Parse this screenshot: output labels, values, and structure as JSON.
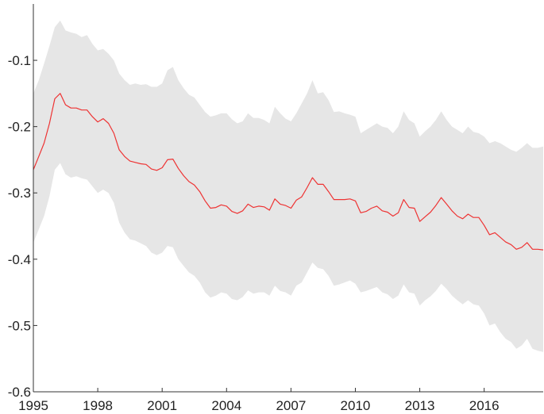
{
  "chart_data": {
    "type": "area",
    "title": "",
    "xlabel": "",
    "ylabel": "",
    "xlim": [
      1995,
      2018.75
    ],
    "ylim": [
      -0.6,
      0.0
    ],
    "grid": false,
    "legend": "none",
    "x_ticks": [
      1995,
      1998,
      2001,
      2004,
      2007,
      2010,
      2013,
      2016
    ],
    "x_tick_labels": [
      "1995",
      "1998",
      "2001",
      "2004",
      "2007",
      "2010",
      "2013",
      "2016"
    ],
    "y_ticks": [
      -0.1,
      -0.2,
      -0.3,
      -0.4,
      -0.5,
      -0.6
    ],
    "y_tick_labels": [
      "-0.1",
      "-0.2",
      "-0.3",
      "-0.4",
      "-0.5",
      "-0.6"
    ],
    "colors": {
      "line": "#ee3333",
      "band": "#e6e6e6",
      "axis": "#333333"
    },
    "series": [
      {
        "kind": "line",
        "x": [
          1995.0,
          1995.25,
          1995.5,
          1995.75,
          1996.0,
          1996.25,
          1996.5,
          1996.75,
          1997.0,
          1997.25,
          1997.5,
          1997.75,
          1998.0,
          1998.25,
          1998.5,
          1998.75,
          1999.0,
          1999.25,
          1999.5,
          1999.75,
          2000.0,
          2000.25,
          2000.5,
          2000.75,
          2001.0,
          2001.25,
          2001.5,
          2001.75,
          2002.0,
          2002.25,
          2002.5,
          2002.75,
          2003.0,
          2003.25,
          2003.5,
          2003.75,
          2004.0,
          2004.25,
          2004.5,
          2004.75,
          2005.0,
          2005.25,
          2005.5,
          2005.75,
          2006.0,
          2006.25,
          2006.5,
          2006.75,
          2007.0,
          2007.25,
          2007.5,
          2007.75,
          2008.0,
          2008.25,
          2008.5,
          2008.75,
          2009.0,
          2009.25,
          2009.5,
          2009.75,
          2010.0,
          2010.25,
          2010.5,
          2010.75,
          2011.0,
          2011.25,
          2011.5,
          2011.75,
          2012.0,
          2012.25,
          2012.5,
          2012.75,
          2013.0,
          2013.25,
          2013.5,
          2013.75,
          2014.0,
          2014.25,
          2014.5,
          2014.75,
          2015.0,
          2015.25,
          2015.5,
          2015.75,
          2016.0,
          2016.25,
          2016.5,
          2016.75,
          2017.0,
          2017.25,
          2017.5,
          2017.75,
          2018.0,
          2018.25,
          2018.5,
          2018.75
        ],
        "y": [
          -0.265,
          -0.245,
          -0.225,
          -0.195,
          -0.158,
          -0.15,
          -0.167,
          -0.172,
          -0.172,
          -0.175,
          -0.175,
          -0.185,
          -0.193,
          -0.188,
          -0.195,
          -0.21,
          -0.235,
          -0.245,
          -0.252,
          -0.254,
          -0.256,
          -0.257,
          -0.264,
          -0.266,
          -0.262,
          -0.25,
          -0.249,
          -0.263,
          -0.274,
          -0.283,
          -0.288,
          -0.298,
          -0.312,
          -0.323,
          -0.322,
          -0.318,
          -0.32,
          -0.328,
          -0.331,
          -0.327,
          -0.317,
          -0.322,
          -0.32,
          -0.321,
          -0.326,
          -0.309,
          -0.317,
          -0.319,
          -0.323,
          -0.311,
          -0.306,
          -0.292,
          -0.277,
          -0.287,
          -0.287,
          -0.298,
          -0.31,
          -0.31,
          -0.31,
          -0.309,
          -0.312,
          -0.33,
          -0.328,
          -0.323,
          -0.32,
          -0.327,
          -0.329,
          -0.335,
          -0.33,
          -0.31,
          -0.322,
          -0.323,
          -0.343,
          -0.336,
          -0.329,
          -0.319,
          -0.307,
          -0.317,
          -0.327,
          -0.335,
          -0.339,
          -0.332,
          -0.337,
          -0.337,
          -0.349,
          -0.363,
          -0.36,
          -0.367,
          -0.374,
          -0.378,
          -0.385,
          -0.382,
          -0.375,
          -0.385,
          -0.385,
          -0.386
        ]
      },
      {
        "kind": "band",
        "x": [
          1995.0,
          1995.25,
          1995.5,
          1995.75,
          1996.0,
          1996.25,
          1996.5,
          1996.75,
          1997.0,
          1997.25,
          1997.5,
          1997.75,
          1998.0,
          1998.25,
          1998.5,
          1998.75,
          1999.0,
          1999.25,
          1999.5,
          1999.75,
          2000.0,
          2000.25,
          2000.5,
          2000.75,
          2001.0,
          2001.25,
          2001.5,
          2001.75,
          2002.0,
          2002.25,
          2002.5,
          2002.75,
          2003.0,
          2003.25,
          2003.5,
          2003.75,
          2004.0,
          2004.25,
          2004.5,
          2004.75,
          2005.0,
          2005.25,
          2005.5,
          2005.75,
          2006.0,
          2006.25,
          2006.5,
          2006.75,
          2007.0,
          2007.25,
          2007.5,
          2007.75,
          2008.0,
          2008.25,
          2008.5,
          2008.75,
          2009.0,
          2009.25,
          2009.5,
          2009.75,
          2010.0,
          2010.25,
          2010.5,
          2010.75,
          2011.0,
          2011.25,
          2011.5,
          2011.75,
          2012.0,
          2012.25,
          2012.5,
          2012.75,
          2013.0,
          2013.25,
          2013.5,
          2013.75,
          2014.0,
          2014.25,
          2014.5,
          2014.75,
          2015.0,
          2015.25,
          2015.5,
          2015.75,
          2016.0,
          2016.25,
          2016.5,
          2016.75,
          2017.0,
          2017.25,
          2017.5,
          2017.75,
          2018.0,
          2018.25,
          2018.5,
          2018.75
        ],
        "upper": [
          -0.15,
          -0.13,
          -0.105,
          -0.078,
          -0.05,
          -0.04,
          -0.055,
          -0.058,
          -0.06,
          -0.065,
          -0.062,
          -0.075,
          -0.085,
          -0.083,
          -0.09,
          -0.1,
          -0.12,
          -0.13,
          -0.137,
          -0.135,
          -0.137,
          -0.136,
          -0.14,
          -0.14,
          -0.135,
          -0.115,
          -0.11,
          -0.13,
          -0.142,
          -0.152,
          -0.156,
          -0.167,
          -0.178,
          -0.185,
          -0.183,
          -0.18,
          -0.18,
          -0.189,
          -0.195,
          -0.192,
          -0.18,
          -0.187,
          -0.187,
          -0.19,
          -0.195,
          -0.17,
          -0.18,
          -0.188,
          -0.192,
          -0.18,
          -0.165,
          -0.15,
          -0.13,
          -0.15,
          -0.148,
          -0.16,
          -0.178,
          -0.177,
          -0.18,
          -0.182,
          -0.185,
          -0.21,
          -0.205,
          -0.2,
          -0.195,
          -0.2,
          -0.202,
          -0.21,
          -0.2,
          -0.177,
          -0.19,
          -0.195,
          -0.215,
          -0.207,
          -0.2,
          -0.19,
          -0.177,
          -0.19,
          -0.2,
          -0.205,
          -0.21,
          -0.2,
          -0.208,
          -0.21,
          -0.215,
          -0.225,
          -0.222,
          -0.225,
          -0.23,
          -0.235,
          -0.238,
          -0.232,
          -0.225,
          -0.232,
          -0.232,
          -0.23
        ],
        "lower": [
          -0.375,
          -0.355,
          -0.335,
          -0.305,
          -0.265,
          -0.255,
          -0.272,
          -0.277,
          -0.275,
          -0.278,
          -0.28,
          -0.29,
          -0.3,
          -0.295,
          -0.3,
          -0.315,
          -0.345,
          -0.36,
          -0.37,
          -0.372,
          -0.376,
          -0.38,
          -0.39,
          -0.394,
          -0.39,
          -0.38,
          -0.382,
          -0.4,
          -0.41,
          -0.42,
          -0.425,
          -0.435,
          -0.45,
          -0.458,
          -0.455,
          -0.45,
          -0.452,
          -0.46,
          -0.462,
          -0.457,
          -0.447,
          -0.452,
          -0.45,
          -0.45,
          -0.455,
          -0.44,
          -0.448,
          -0.45,
          -0.455,
          -0.44,
          -0.435,
          -0.42,
          -0.405,
          -0.413,
          -0.415,
          -0.425,
          -0.44,
          -0.438,
          -0.435,
          -0.432,
          -0.437,
          -0.45,
          -0.448,
          -0.445,
          -0.442,
          -0.45,
          -0.453,
          -0.46,
          -0.455,
          -0.438,
          -0.45,
          -0.452,
          -0.47,
          -0.462,
          -0.456,
          -0.448,
          -0.437,
          -0.445,
          -0.455,
          -0.462,
          -0.468,
          -0.462,
          -0.468,
          -0.47,
          -0.482,
          -0.5,
          -0.497,
          -0.51,
          -0.52,
          -0.525,
          -0.535,
          -0.53,
          -0.52,
          -0.535,
          -0.538,
          -0.54
        ]
      }
    ]
  }
}
